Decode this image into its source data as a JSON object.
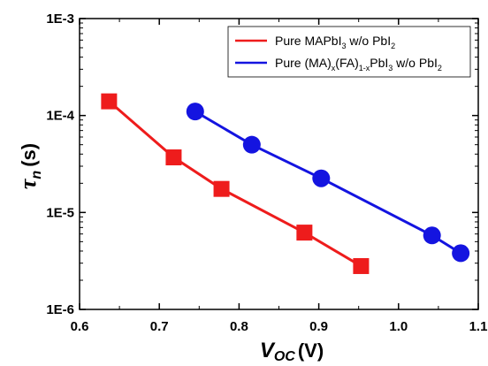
{
  "chart_data": {
    "type": "scatter",
    "xlabel": {
      "main": "V",
      "sub": "OC",
      "unit": "(V)"
    },
    "ylabel": {
      "main": "τ",
      "sub": "n",
      "unit": "(s)"
    },
    "xlim": [
      0.6,
      1.1
    ],
    "ylim": [
      1e-06,
      0.001
    ],
    "yscale": "log",
    "xticks": [
      "0.6",
      "0.7",
      "0.8",
      "0.9",
      "1.0",
      "1.1"
    ],
    "yticks": [
      "1E-6",
      "1E-5",
      "1E-4",
      "1E-3"
    ],
    "grid": false,
    "legend_position": "top-right",
    "series": [
      {
        "name": "Pure MAPbI3 w/o PbI2",
        "legend": {
          "a": "Pure MAPbI",
          "sub1": "3",
          "b": " w/o PbI",
          "sub2": "2"
        },
        "color": "#ee1c1c",
        "marker": "square",
        "x": [
          0.637,
          0.718,
          0.778,
          0.882,
          0.953
        ],
        "y": [
          0.00014,
          3.7e-05,
          1.75e-05,
          6.2e-06,
          2.8e-06
        ]
      },
      {
        "name": "Pure (MA)x(FA)1-xPbI3 w/o PbI2",
        "legend": {
          "a": "Pure (MA)",
          "sub1": "x",
          "b": "(FA)",
          "sub2": "1-x",
          "c": "PbI",
          "sub3": "3",
          "d": " w/o PbI",
          "sub4": "2"
        },
        "color": "#1414e0",
        "marker": "circle",
        "x": [
          0.745,
          0.816,
          0.903,
          1.042,
          1.078
        ],
        "y": [
          0.00011,
          5e-05,
          2.25e-05,
          5.8e-06,
          3.8e-06
        ]
      }
    ]
  }
}
